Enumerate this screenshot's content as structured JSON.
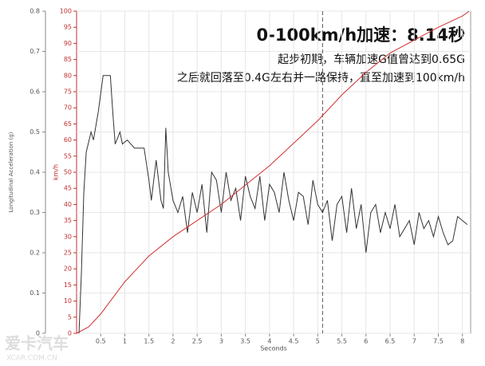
{
  "chart_data": {
    "type": "line",
    "annotations": [
      "0-100km/h加速：8.14秒",
      "起步初期，车辆加速G值曾达到0.65G",
      "之后就回落至0.4G左右并一路保持，直至加速到100km/h"
    ],
    "xlabel": "Seconds",
    "ylabel": "Longitudinal Acceleration (g)",
    "y2label": "km/h",
    "watermark": [
      "爱卡汽车",
      "XCAR.COM.CN"
    ],
    "xlim": [
      0,
      8.17
    ],
    "xticks": [
      0.5,
      1,
      1.5,
      2,
      2.5,
      3,
      3.5,
      4,
      4.5,
      5,
      5.5,
      6,
      6.5,
      7,
      7.5,
      8
    ],
    "ylim": [
      0,
      0.8
    ],
    "yticks": [
      0,
      0.1,
      0.2,
      0.3,
      0.4,
      0.5,
      0.6,
      0.7,
      0.8
    ],
    "y2lim": [
      0,
      100
    ],
    "y2ticks": [
      0,
      5,
      10,
      15,
      20,
      25,
      30,
      35,
      40,
      45,
      50,
      55,
      60,
      65,
      70,
      75,
      80,
      85,
      90,
      95,
      100
    ],
    "grid": true,
    "vline": 5.1,
    "series": [
      {
        "name": "Longitudinal Acceleration",
        "color": "#333333",
        "x": [
          0.05,
          0.1,
          0.15,
          0.2,
          0.3,
          0.35,
          0.45,
          0.55,
          0.6,
          0.7,
          0.75,
          0.8,
          0.9,
          0.95,
          1.05,
          1.2,
          1.3,
          1.4,
          1.5,
          1.55,
          1.65,
          1.75,
          1.8,
          1.85,
          1.9,
          2,
          2.1,
          2.2,
          2.3,
          2.4,
          2.5,
          2.6,
          2.7,
          2.8,
          2.9,
          3,
          3.1,
          3.2,
          3.3,
          3.4,
          3.5,
          3.6,
          3.7,
          3.8,
          3.9,
          4,
          4.1,
          4.2,
          4.3,
          4.4,
          4.5,
          4.6,
          4.7,
          4.8,
          4.9,
          5,
          5.1,
          5.2,
          5.3,
          5.4,
          5.5,
          5.6,
          5.7,
          5.8,
          5.9,
          6,
          6.1,
          6.2,
          6.3,
          6.4,
          6.5,
          6.6,
          6.7,
          6.8,
          6.9,
          7,
          7.1,
          7.2,
          7.3,
          7.4,
          7.5,
          7.6,
          7.7,
          7.8,
          7.9,
          8,
          8.1
        ],
        "values": [
          0,
          0.15,
          0.35,
          0.45,
          0.5,
          0.48,
          0.55,
          0.64,
          0.64,
          0.64,
          0.55,
          0.47,
          0.5,
          0.47,
          0.48,
          0.46,
          0.46,
          0.46,
          0.38,
          0.33,
          0.43,
          0.33,
          0.31,
          0.51,
          0.4,
          0.33,
          0.3,
          0.34,
          0.25,
          0.35,
          0.3,
          0.37,
          0.25,
          0.4,
          0.38,
          0.3,
          0.4,
          0.33,
          0.36,
          0.28,
          0.39,
          0.34,
          0.31,
          0.39,
          0.28,
          0.37,
          0.35,
          0.3,
          0.4,
          0.33,
          0.28,
          0.35,
          0.34,
          0.27,
          0.38,
          0.32,
          0.3,
          0.33,
          0.23,
          0.32,
          0.34,
          0.25,
          0.36,
          0.26,
          0.32,
          0.2,
          0.3,
          0.32,
          0.25,
          0.3,
          0.26,
          0.32,
          0.24,
          0.26,
          0.28,
          0.22,
          0.3,
          0.26,
          0.28,
          0.24,
          0.29,
          0.25,
          0.22,
          0.23,
          0.29,
          0.28,
          0.27
        ]
      },
      {
        "name": "km/h",
        "color": "#d03030",
        "axis": "y2",
        "x": [
          0,
          0.25,
          0.5,
          0.75,
          1,
          1.25,
          1.5,
          2,
          2.5,
          3,
          3.5,
          4,
          4.5,
          5,
          5.5,
          6,
          6.5,
          7,
          7.5,
          8,
          8.14
        ],
        "values": [
          0,
          2,
          6,
          11,
          16,
          20,
          24,
          30,
          35,
          40,
          46,
          52,
          59,
          66,
          74,
          81,
          87,
          91,
          95,
          98.5,
          100
        ]
      }
    ]
  }
}
